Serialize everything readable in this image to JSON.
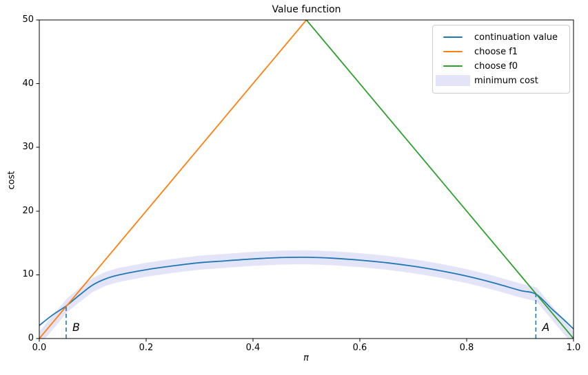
{
  "chart_data": {
    "type": "line",
    "title": "Value function",
    "xlabel": "π",
    "ylabel": "cost",
    "xlim": [
      0.0,
      1.0
    ],
    "ylim": [
      0,
      50
    ],
    "grid": false,
    "xtick_labels": [
      "0.0",
      "0.2",
      "0.4",
      "0.6",
      "0.8",
      "1.0"
    ],
    "ytick_labels": [
      "0",
      "10",
      "20",
      "30",
      "40",
      "50"
    ],
    "series": [
      {
        "name": "continuation value",
        "color": "#1f77b4",
        "style": "solid",
        "points": [
          [
            0,
            2.05
          ],
          [
            0.025,
            3.7
          ],
          [
            0.05,
            5.1
          ],
          [
            0.075,
            6.8
          ],
          [
            0.1,
            8.4
          ],
          [
            0.125,
            9.4
          ],
          [
            0.15,
            10.0
          ],
          [
            0.2,
            10.8
          ],
          [
            0.25,
            11.4
          ],
          [
            0.3,
            11.9
          ],
          [
            0.35,
            12.2
          ],
          [
            0.4,
            12.5
          ],
          [
            0.45,
            12.7
          ],
          [
            0.5,
            12.75
          ],
          [
            0.55,
            12.6
          ],
          [
            0.6,
            12.3
          ],
          [
            0.65,
            11.9
          ],
          [
            0.7,
            11.35
          ],
          [
            0.75,
            10.65
          ],
          [
            0.8,
            9.8
          ],
          [
            0.85,
            8.75
          ],
          [
            0.9,
            7.55
          ],
          [
            0.93,
            6.95
          ],
          [
            0.96,
            4.6
          ],
          [
            0.98,
            3.1
          ],
          [
            1,
            1.5
          ]
        ]
      },
      {
        "name": "choose f1",
        "color": "#ff7f0e",
        "style": "solid",
        "points": [
          [
            0,
            0
          ],
          [
            0.5,
            50
          ]
        ]
      },
      {
        "name": "choose f0",
        "color": "#2ca02c",
        "style": "solid",
        "points": [
          [
            0.5,
            50
          ],
          [
            1,
            0
          ]
        ]
      }
    ],
    "band": {
      "name": "minimum cost",
      "color": "#e4e4f9",
      "half_width": 1.1,
      "center": "lower envelope of the three series"
    },
    "annotations": [
      {
        "label": "B",
        "x": 0.0503,
        "y_top": 5.1,
        "line_color": "#1f77b4",
        "line_style": "dashed"
      },
      {
        "label": "A",
        "x": 0.9295,
        "y_top": 6.95,
        "line_color": "#1f77b4",
        "line_style": "dashed"
      }
    ],
    "legend": {
      "position": "upper right",
      "entries": [
        {
          "label": "continuation value",
          "swatch": "line",
          "color": "#1f77b4"
        },
        {
          "label": "choose f1",
          "swatch": "line",
          "color": "#ff7f0e"
        },
        {
          "label": "choose f0",
          "swatch": "line",
          "color": "#2ca02c"
        },
        {
          "label": "minimum cost",
          "swatch": "patch",
          "color": "#e4e4f9"
        }
      ]
    }
  }
}
